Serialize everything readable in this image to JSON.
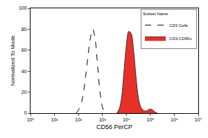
{
  "chart_data": {
    "type": "line",
    "x_label": "CD56 PerCP",
    "y_label": "Normalized To Mode",
    "log": "x",
    "legend": "upper right",
    "legend_title": "Subset Name",
    "xlim": [
      1,
      10000000
    ],
    "xticks": [
      {
        "value": 1,
        "label": "10⁰"
      },
      {
        "value": 10,
        "label": "10¹"
      },
      {
        "value": 100,
        "label": "10²"
      },
      {
        "value": 1000,
        "label": "10³"
      },
      {
        "value": 10000,
        "label": "10⁴"
      },
      {
        "value": 100000,
        "label": "10⁵"
      },
      {
        "value": 1000000,
        "label": "10⁶"
      },
      {
        "value": 10000000,
        "label": "10⁷"
      }
    ],
    "ylim": [
      0,
      100
    ],
    "yticks": [
      0,
      20,
      40,
      60,
      80,
      100
    ],
    "series": [
      {
        "name": "CD3 Cells",
        "type": "line",
        "line_style": "dashed",
        "color": "#000000",
        "x": [
          79.4,
          100,
          125.9,
          158.5,
          199.5,
          251.2,
          316.2,
          398.1,
          501.2,
          631,
          794.3,
          1000,
          1258.9,
          1584.9
        ],
        "values": [
          0,
          3,
          8,
          18,
          35,
          55,
          72,
          80,
          70,
          45,
          20,
          6,
          1,
          0
        ]
      },
      {
        "name": "CD3-CD56+",
        "type": "area",
        "line_style": "solid",
        "color": "#e8302a",
        "x": [
          3981,
          5012,
          6310,
          7943,
          10000,
          12589,
          15849,
          19953,
          25119,
          31623,
          39811,
          50119,
          63096,
          79433,
          100000,
          125893,
          158489,
          199526
        ],
        "values": [
          0,
          4,
          15,
          40,
          65,
          78,
          76,
          60,
          35,
          15,
          6,
          3,
          2,
          3,
          4,
          3,
          1,
          0
        ]
      }
    ]
  }
}
